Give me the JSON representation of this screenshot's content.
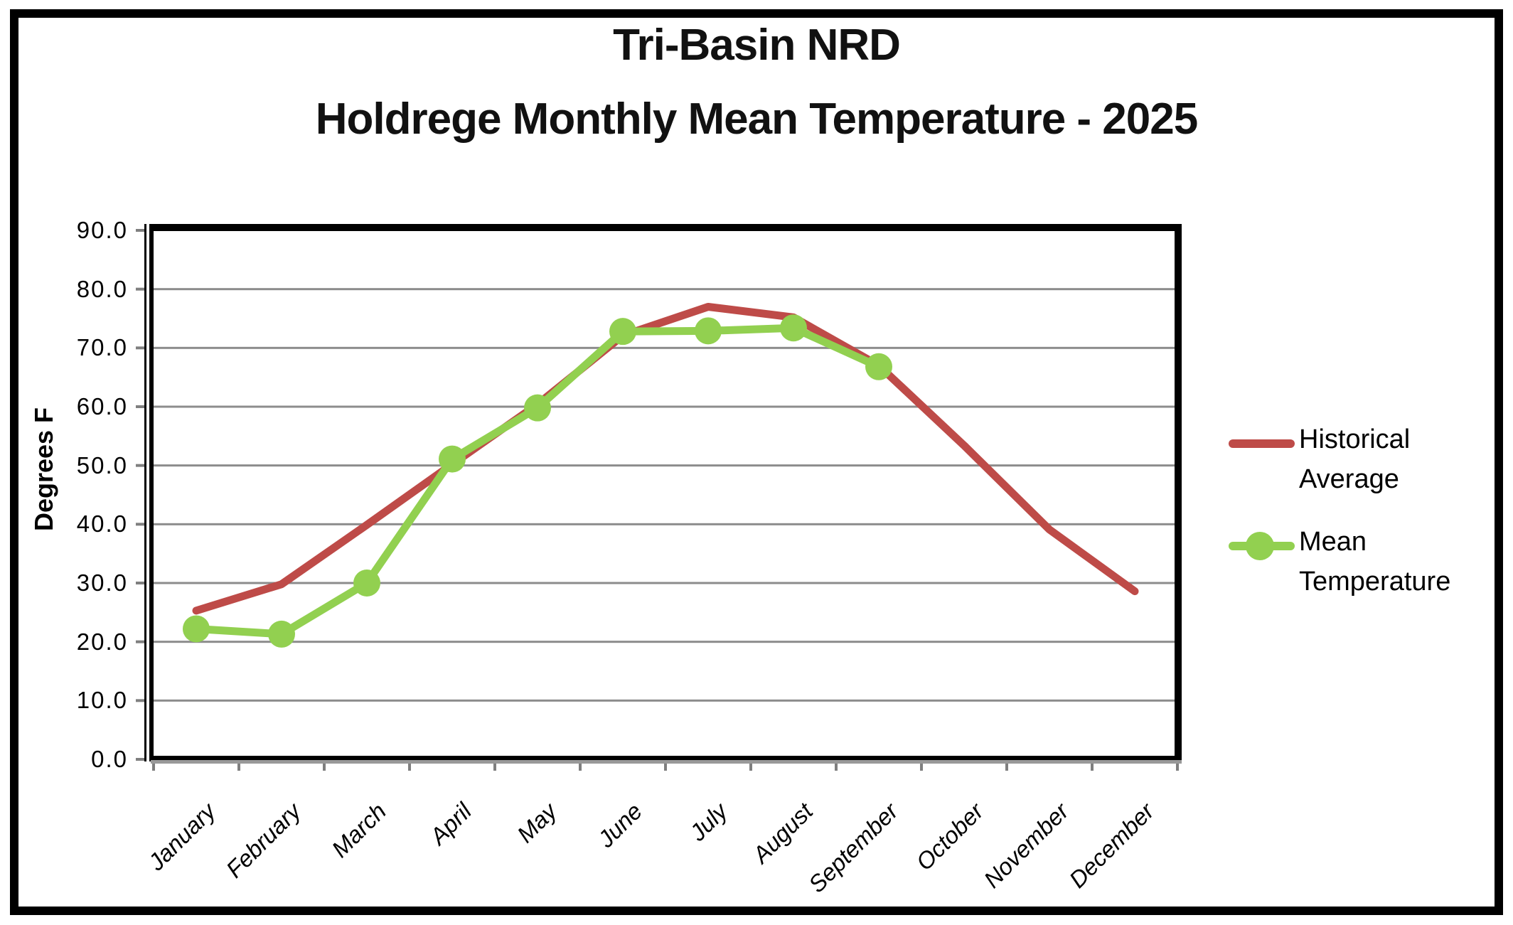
{
  "figure": {
    "border_color": "#000000",
    "background": "#ffffff"
  },
  "chart_data": {
    "type": "line",
    "title_lines": [
      "Tri-Basin NRD",
      "Holdrege Monthly Mean Temperature - 2025"
    ],
    "ylabel": "Degrees F",
    "xlabel": "",
    "ylim": [
      0,
      90
    ],
    "ytick_step": 10,
    "ytick_labels": [
      "0.0",
      "10.0",
      "20.0",
      "30.0",
      "40.0",
      "50.0",
      "60.0",
      "70.0",
      "80.0",
      "90.0"
    ],
    "grid": "horizontal",
    "gridline_color": "#8C8C8C",
    "legend_position": "right",
    "categories": [
      "January",
      "February",
      "March",
      "April",
      "May",
      "June",
      "July",
      "August",
      "September",
      "October",
      "November",
      "December"
    ],
    "series": [
      {
        "name": "Historical Average",
        "color": "#BE4B48",
        "marker": "none",
        "values": [
          25.3,
          29.8,
          39.9,
          50.2,
          60.4,
          72.1,
          77.0,
          75.2,
          67.0,
          53.4,
          39.1,
          28.6
        ]
      },
      {
        "name": "Mean Temperature",
        "color": "#92D050",
        "marker": "circle",
        "values": [
          22.2,
          21.3,
          30.0,
          51.1,
          59.8,
          72.8,
          72.9,
          73.4,
          66.8,
          null,
          null,
          null
        ]
      }
    ]
  },
  "legend": {
    "items": [
      {
        "line1": "Historical",
        "line2": "Average"
      },
      {
        "line1": "Mean",
        "line2": "Temperature"
      }
    ]
  }
}
